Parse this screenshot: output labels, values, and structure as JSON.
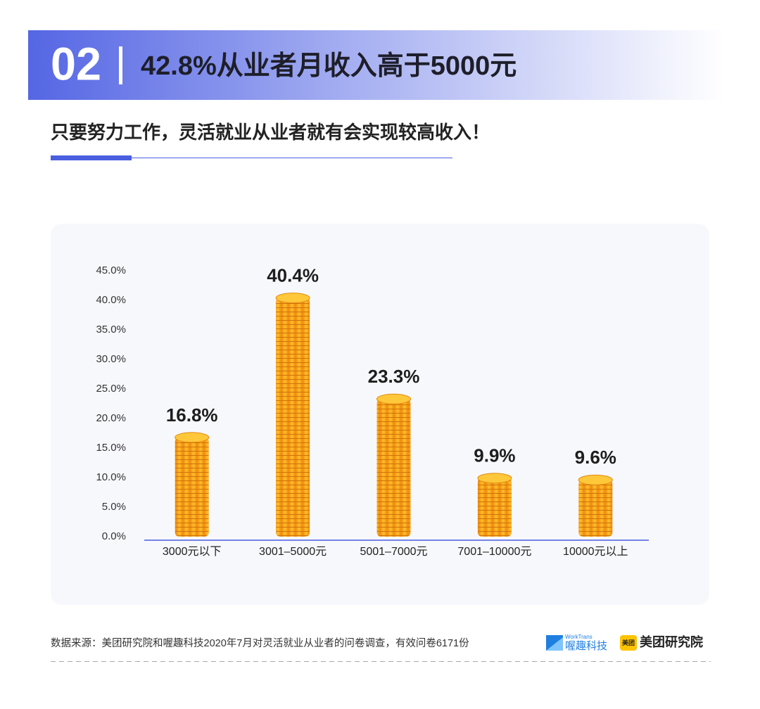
{
  "header": {
    "number": "02",
    "title": "42.8%从业者月收入高于5000元",
    "subtitle": "只要努力工作，灵活就业从业者就有会实现较高收入！"
  },
  "chart_data": {
    "type": "bar",
    "categories": [
      "3000元以下",
      "3001–5000元",
      "5001–7000元",
      "7001–10000元",
      "10000元以上"
    ],
    "values": [
      16.8,
      40.4,
      23.3,
      9.9,
      9.6
    ],
    "value_labels": [
      "16.8%",
      "40.4%",
      "23.3%",
      "9.9%",
      "9.6%"
    ],
    "color": "#f7a81b",
    "ylim": [
      0,
      45
    ],
    "yticks": [
      {
        "value": 0,
        "label": "0.0%"
      },
      {
        "value": 5,
        "label": "5.0%"
      },
      {
        "value": 10,
        "label": "10.0%"
      },
      {
        "value": 15,
        "label": "15.0%"
      },
      {
        "value": 20,
        "label": "20.0%"
      },
      {
        "value": 25,
        "label": "25.0%"
      },
      {
        "value": 30,
        "label": "30.0%"
      },
      {
        "value": 35,
        "label": "35.0%"
      },
      {
        "value": 40,
        "label": "40.0%"
      },
      {
        "value": 45,
        "label": "45.0%"
      }
    ],
    "grid": false
  },
  "footer": {
    "source": "数据来源：美团研究院和喔趣科技2020年7月对灵活就业从业者的问卷调查，有效问卷6171份",
    "logo1_small": "WorkTrans",
    "logo1": "喔趣科技",
    "logo2_icon": "美团",
    "logo2": "美团研究院"
  }
}
